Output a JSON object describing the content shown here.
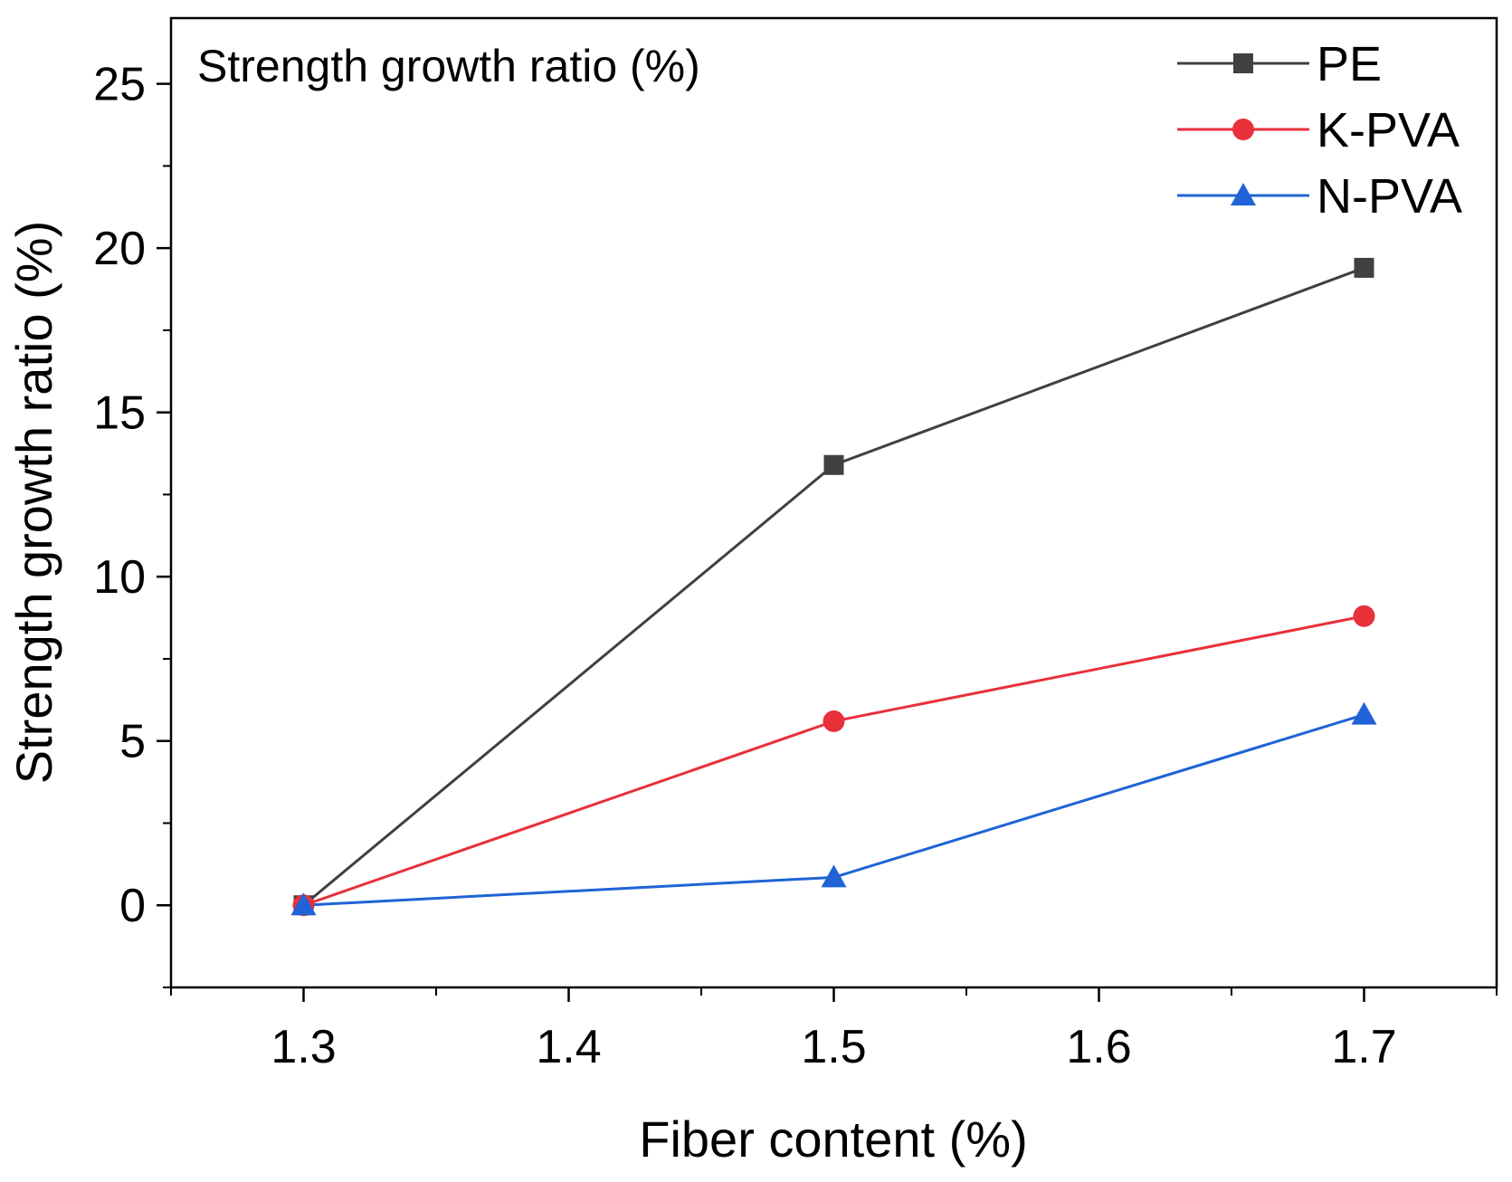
{
  "chart_data": {
    "type": "line",
    "title": "Strength growth ratio (%)",
    "xlabel": "Fiber content (%)",
    "ylabel": "Strength growth ratio (%)",
    "xlim": [
      1.25,
      1.75
    ],
    "ylim": [
      -2.5,
      27
    ],
    "x_ticks": [
      1.3,
      1.4,
      1.5,
      1.6,
      1.7
    ],
    "x_tick_labels": [
      "1.3",
      "1.4",
      "1.5",
      "1.6",
      "1.7"
    ],
    "y_ticks": [
      0,
      5,
      10,
      15,
      20,
      25
    ],
    "y_tick_labels": [
      "0",
      "5",
      "10",
      "15",
      "20",
      "25"
    ],
    "grid": false,
    "legend_position": "top-right",
    "series": [
      {
        "name": "PE",
        "marker": "square",
        "color": "#404040",
        "x": [
          1.3,
          1.5,
          1.7
        ],
        "values": [
          0,
          13.4,
          19.4
        ]
      },
      {
        "name": "K-PVA",
        "marker": "circle",
        "color": "#e8303a",
        "x": [
          1.3,
          1.5,
          1.7
        ],
        "values": [
          0,
          5.6,
          8.8
        ]
      },
      {
        "name": "N-PVA",
        "marker": "triangle",
        "color": "#1f63d6",
        "x": [
          1.3,
          1.5,
          1.7
        ],
        "values": [
          0,
          0.85,
          5.8
        ]
      }
    ]
  }
}
